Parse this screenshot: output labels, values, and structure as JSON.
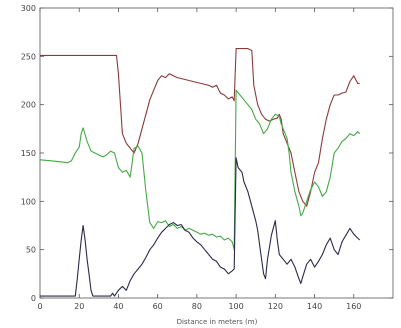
{
  "chart_data": {
    "type": "line",
    "title": "",
    "xlabel": "Distance in meters (m)",
    "ylabel": "",
    "xlim": [
      0,
      180
    ],
    "ylim": [
      0,
      300
    ],
    "xticks": [
      0,
      20,
      40,
      60,
      80,
      100,
      120,
      140,
      160
    ],
    "yticks": [
      0,
      50,
      100,
      150,
      200,
      250,
      300
    ],
    "xtick_labels": [
      "0",
      "20",
      "40",
      "60",
      "80",
      "100",
      "120",
      "140",
      "160"
    ],
    "ytick_labels": [
      "0",
      "50",
      "100",
      "150",
      "200",
      "250",
      "300"
    ],
    "grid": false,
    "series": [
      {
        "color": "#8b3a3a",
        "points": [
          [
            0,
            251
          ],
          [
            10,
            251
          ],
          [
            20,
            251
          ],
          [
            30,
            251
          ],
          [
            39,
            251
          ],
          [
            40,
            232
          ],
          [
            42,
            170
          ],
          [
            44,
            160
          ],
          [
            46,
            155
          ],
          [
            48,
            150
          ],
          [
            50,
            160
          ],
          [
            52,
            175
          ],
          [
            54,
            190
          ],
          [
            56,
            205
          ],
          [
            58,
            215
          ],
          [
            60,
            225
          ],
          [
            62,
            230
          ],
          [
            64,
            228
          ],
          [
            66,
            232
          ],
          [
            68,
            230
          ],
          [
            70,
            228
          ],
          [
            74,
            226
          ],
          [
            78,
            224
          ],
          [
            82,
            222
          ],
          [
            86,
            220
          ],
          [
            88,
            218
          ],
          [
            90,
            220
          ],
          [
            92,
            212
          ],
          [
            94,
            210
          ],
          [
            96,
            206
          ],
          [
            98,
            208
          ],
          [
            99,
            204
          ],
          [
            100,
            258
          ],
          [
            103,
            258
          ],
          [
            106,
            258
          ],
          [
            108,
            256
          ],
          [
            109,
            220
          ],
          [
            111,
            200
          ],
          [
            113,
            190
          ],
          [
            115,
            185
          ],
          [
            117,
            183
          ],
          [
            119,
            185
          ],
          [
            121,
            186
          ],
          [
            122,
            190
          ],
          [
            123,
            185
          ],
          [
            124,
            170
          ],
          [
            126,
            160
          ],
          [
            128,
            150
          ],
          [
            130,
            130
          ],
          [
            132,
            110
          ],
          [
            134,
            100
          ],
          [
            136,
            95
          ],
          [
            138,
            110
          ],
          [
            140,
            130
          ],
          [
            142,
            140
          ],
          [
            144,
            165
          ],
          [
            146,
            185
          ],
          [
            148,
            200
          ],
          [
            150,
            210
          ],
          [
            152,
            210
          ],
          [
            154,
            212
          ],
          [
            156,
            213
          ],
          [
            158,
            224
          ],
          [
            160,
            230
          ],
          [
            161,
            226
          ],
          [
            162,
            222
          ],
          [
            163,
            222
          ]
        ]
      },
      {
        "color": "#44aa44",
        "points": [
          [
            0,
            143
          ],
          [
            5,
            142
          ],
          [
            10,
            141
          ],
          [
            14,
            140
          ],
          [
            16,
            142
          ],
          [
            18,
            150
          ],
          [
            20,
            156
          ],
          [
            21,
            170
          ],
          [
            22,
            176
          ],
          [
            24,
            162
          ],
          [
            26,
            152
          ],
          [
            28,
            150
          ],
          [
            30,
            148
          ],
          [
            32,
            146
          ],
          [
            34,
            148
          ],
          [
            36,
            152
          ],
          [
            38,
            150
          ],
          [
            40,
            135
          ],
          [
            42,
            130
          ],
          [
            44,
            132
          ],
          [
            46,
            125
          ],
          [
            48,
            155
          ],
          [
            50,
            157
          ],
          [
            52,
            150
          ],
          [
            54,
            110
          ],
          [
            56,
            78
          ],
          [
            58,
            72
          ],
          [
            60,
            79
          ],
          [
            62,
            78
          ],
          [
            64,
            80
          ],
          [
            66,
            74
          ],
          [
            68,
            76
          ],
          [
            70,
            72
          ],
          [
            72,
            74
          ],
          [
            74,
            70
          ],
          [
            76,
            72
          ],
          [
            78,
            70
          ],
          [
            80,
            68
          ],
          [
            82,
            66
          ],
          [
            84,
            67
          ],
          [
            86,
            65
          ],
          [
            88,
            66
          ],
          [
            90,
            63
          ],
          [
            92,
            64
          ],
          [
            94,
            60
          ],
          [
            96,
            62
          ],
          [
            98,
            58
          ],
          [
            99,
            50
          ],
          [
            100,
            215
          ],
          [
            102,
            210
          ],
          [
            104,
            205
          ],
          [
            106,
            200
          ],
          [
            108,
            195
          ],
          [
            110,
            185
          ],
          [
            112,
            180
          ],
          [
            114,
            170
          ],
          [
            116,
            175
          ],
          [
            118,
            185
          ],
          [
            120,
            190
          ],
          [
            122,
            188
          ],
          [
            123,
            180
          ],
          [
            124,
            175
          ],
          [
            126,
            165
          ],
          [
            127,
            150
          ],
          [
            128,
            130
          ],
          [
            130,
            110
          ],
          [
            132,
            95
          ],
          [
            133,
            85
          ],
          [
            134,
            88
          ],
          [
            136,
            100
          ],
          [
            138,
            112
          ],
          [
            140,
            120
          ],
          [
            142,
            115
          ],
          [
            144,
            105
          ],
          [
            146,
            110
          ],
          [
            148,
            125
          ],
          [
            150,
            150
          ],
          [
            152,
            155
          ],
          [
            154,
            162
          ],
          [
            156,
            165
          ],
          [
            158,
            170
          ],
          [
            160,
            168
          ],
          [
            162,
            172
          ],
          [
            163,
            170
          ]
        ]
      },
      {
        "color": "#2a2a4a",
        "points": [
          [
            0,
            2
          ],
          [
            10,
            2
          ],
          [
            18,
            2
          ],
          [
            19,
            20
          ],
          [
            20,
            40
          ],
          [
            21,
            60
          ],
          [
            22,
            75
          ],
          [
            23,
            60
          ],
          [
            24,
            40
          ],
          [
            25,
            25
          ],
          [
            26,
            8
          ],
          [
            27,
            2
          ],
          [
            36,
            2
          ],
          [
            37,
            5
          ],
          [
            38,
            2
          ],
          [
            40,
            8
          ],
          [
            42,
            12
          ],
          [
            44,
            8
          ],
          [
            46,
            18
          ],
          [
            48,
            25
          ],
          [
            50,
            30
          ],
          [
            52,
            35
          ],
          [
            54,
            42
          ],
          [
            56,
            50
          ],
          [
            58,
            55
          ],
          [
            60,
            62
          ],
          [
            62,
            68
          ],
          [
            64,
            72
          ],
          [
            66,
            76
          ],
          [
            68,
            78
          ],
          [
            70,
            75
          ],
          [
            72,
            76
          ],
          [
            74,
            70
          ],
          [
            76,
            68
          ],
          [
            78,
            62
          ],
          [
            80,
            58
          ],
          [
            82,
            55
          ],
          [
            84,
            50
          ],
          [
            86,
            45
          ],
          [
            88,
            40
          ],
          [
            90,
            38
          ],
          [
            92,
            32
          ],
          [
            94,
            30
          ],
          [
            96,
            25
          ],
          [
            98,
            28
          ],
          [
            99,
            30
          ],
          [
            100,
            145
          ],
          [
            101,
            135
          ],
          [
            103,
            130
          ],
          [
            104,
            120
          ],
          [
            106,
            110
          ],
          [
            108,
            95
          ],
          [
            110,
            80
          ],
          [
            111,
            70
          ],
          [
            112,
            55
          ],
          [
            113,
            40
          ],
          [
            114,
            25
          ],
          [
            115,
            20
          ],
          [
            116,
            40
          ],
          [
            118,
            65
          ],
          [
            120,
            80
          ],
          [
            121,
            60
          ],
          [
            122,
            45
          ],
          [
            124,
            40
          ],
          [
            126,
            35
          ],
          [
            128,
            40
          ],
          [
            130,
            32
          ],
          [
            132,
            20
          ],
          [
            133,
            15
          ],
          [
            134,
            22
          ],
          [
            136,
            35
          ],
          [
            138,
            40
          ],
          [
            140,
            32
          ],
          [
            142,
            38
          ],
          [
            144,
            45
          ],
          [
            146,
            55
          ],
          [
            148,
            62
          ],
          [
            150,
            50
          ],
          [
            152,
            45
          ],
          [
            154,
            58
          ],
          [
            156,
            65
          ],
          [
            158,
            72
          ],
          [
            160,
            66
          ],
          [
            162,
            62
          ],
          [
            163,
            60
          ]
        ]
      }
    ]
  }
}
